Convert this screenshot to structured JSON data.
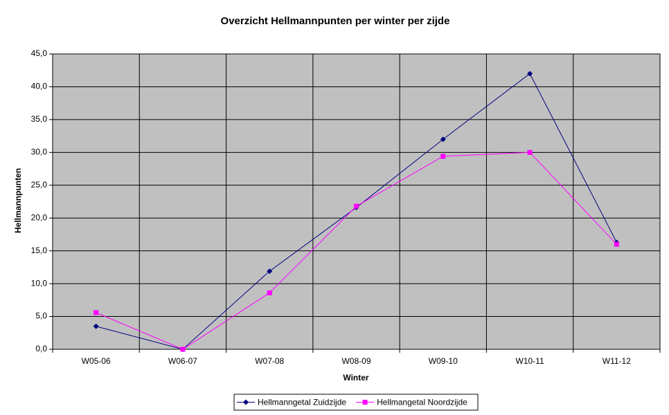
{
  "chart_data": {
    "type": "line",
    "title": "Overzicht Hellmannpunten per winter per zijde",
    "x_label": "Winter",
    "y_label": "Hellmannpunten",
    "categories": [
      "W05-06",
      "W06-07",
      "W07-08",
      "W08-09",
      "W09-10",
      "W10-11",
      "W11-12"
    ],
    "series": [
      {
        "name": "Hellmanngetal Zuidzijde",
        "color": "#000080",
        "marker": "diamond",
        "values": [
          3.5,
          0,
          11.9,
          21.6,
          32.0,
          42.0,
          16.3
        ]
      },
      {
        "name": "Hellmangetal Noordzijde",
        "color": "#ff00ff",
        "marker": "square",
        "values": [
          5.6,
          0,
          8.6,
          21.8,
          29.4,
          30.0,
          16.0
        ]
      }
    ],
    "ylim": [
      0,
      45
    ],
    "yticks": [
      {
        "value": 0,
        "label": "0,0"
      },
      {
        "value": 5,
        "label": "5,0"
      },
      {
        "value": 10,
        "label": "10,0"
      },
      {
        "value": 15,
        "label": "15,0"
      },
      {
        "value": 20,
        "label": "20,0"
      },
      {
        "value": 25,
        "label": "25,0"
      },
      {
        "value": 30,
        "label": "30,0"
      },
      {
        "value": 35,
        "label": "35,0"
      },
      {
        "value": 40,
        "label": "40,0"
      },
      {
        "value": 45,
        "label": "45,0"
      }
    ],
    "grid": true,
    "legend": "bottom"
  }
}
